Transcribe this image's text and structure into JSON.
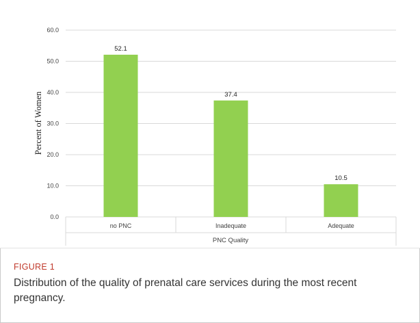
{
  "figure": {
    "label": "FIGURE 1",
    "caption": "Distribution of the quality of prenatal care services during the most recent pregnancy."
  },
  "chart_data": {
    "type": "bar",
    "categories": [
      "no PNC",
      "Inadequate",
      "Adequate"
    ],
    "values": [
      52.1,
      37.4,
      10.5
    ],
    "value_labels": [
      "52.1",
      "37.4",
      "10.5"
    ],
    "title": "",
    "xlabel": "PNC Quality",
    "ylabel": "Percent of Women",
    "ylim": [
      0,
      60
    ],
    "yticks": [
      "0.0",
      "10.0",
      "20.0",
      "30.0",
      "40.0",
      "50.0",
      "60.0"
    ],
    "grid": true,
    "bar_color": "#92d050",
    "grid_color": "#d9d9d9"
  }
}
